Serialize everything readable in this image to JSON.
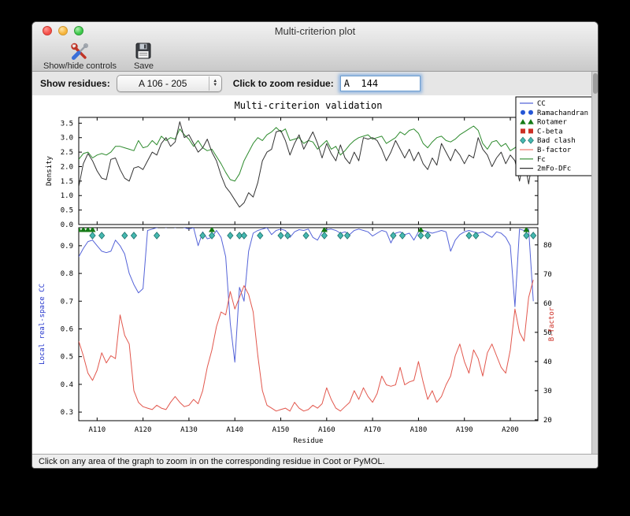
{
  "window": {
    "title": "Multi-criterion plot"
  },
  "toolbar": {
    "buttons": [
      {
        "label": "Show/hide controls",
        "icon": "tools-icon"
      },
      {
        "label": "Save",
        "icon": "floppy-disk-icon"
      }
    ]
  },
  "controls": {
    "show_residues_label": "Show residues:",
    "show_residues_value": "A 106 - 205",
    "zoom_residue_label": "Click to zoom residue:",
    "zoom_residue_value": "A  144"
  },
  "statusbar": {
    "text": "Click on any area of the graph to zoom in on the corresponding residue in Coot or PyMOL."
  },
  "chart_data": {
    "type": "line",
    "title": "Multi-criterion validation",
    "xlabel": "Residue",
    "x_start": 106,
    "x_end": 205,
    "x_tick_values": [
      110,
      120,
      130,
      140,
      150,
      160,
      170,
      180,
      190,
      200
    ],
    "x_tick_labels": [
      "A110",
      "A120",
      "A130",
      "A140",
      "A150",
      "A160",
      "A170",
      "A180",
      "A190",
      "A200"
    ],
    "top_panel": {
      "ylabel": "Density",
      "ylim": [
        0,
        3.7
      ],
      "yticks": [
        0.0,
        0.5,
        1.0,
        1.5,
        2.0,
        2.5,
        3.0,
        3.5
      ],
      "series": [
        {
          "name": "Fc",
          "color": "#2e8b2e",
          "values": [
            2.25,
            2.45,
            2.5,
            2.3,
            2.4,
            2.45,
            2.4,
            2.5,
            2.7,
            2.7,
            2.65,
            2.6,
            2.55,
            2.9,
            2.65,
            2.7,
            2.9,
            2.75,
            3.05,
            2.9,
            3.0,
            2.95,
            3.3,
            3.1,
            2.95,
            2.7,
            2.9,
            2.65,
            2.55,
            2.6,
            2.35,
            2.1,
            1.8,
            1.55,
            1.5,
            1.75,
            2.2,
            2.5,
            2.8,
            3.0,
            2.9,
            3.1,
            3.2,
            3.35,
            3.2,
            3.3,
            2.9,
            2.95,
            3.0,
            2.8,
            2.9,
            2.85,
            2.6,
            2.75,
            2.9,
            2.6,
            2.7,
            2.4,
            2.55,
            2.75,
            2.9,
            3.0,
            3.05,
            3.1,
            2.95,
            3.0,
            3.05,
            2.8,
            2.9,
            3.0,
            3.2,
            3.1,
            3.25,
            3.3,
            3.15,
            2.8,
            2.65,
            2.85,
            3.0,
            3.05,
            2.9,
            2.85,
            2.95,
            3.1,
            3.2,
            3.3,
            3.4,
            3.25,
            2.8,
            2.6,
            2.85,
            2.9,
            2.7,
            2.8,
            2.55,
            2.65,
            2.8,
            2.9,
            2.85,
            2.6
          ]
        },
        {
          "name": "2mFo-DFc",
          "color": "#333333",
          "values": [
            1.3,
            2.1,
            2.45,
            2.2,
            1.85,
            1.6,
            1.55,
            2.25,
            2.3,
            1.9,
            1.6,
            1.5,
            1.95,
            2.0,
            1.9,
            2.2,
            2.5,
            2.4,
            2.8,
            3.0,
            2.7,
            2.85,
            3.55,
            3.0,
            3.1,
            2.8,
            2.5,
            2.65,
            2.95,
            2.5,
            2.2,
            1.7,
            1.3,
            1.1,
            0.85,
            0.6,
            0.75,
            1.1,
            0.95,
            1.45,
            2.2,
            2.5,
            2.6,
            3.2,
            3.25,
            2.9,
            2.4,
            2.8,
            3.1,
            2.6,
            2.9,
            3.2,
            2.8,
            2.3,
            2.8,
            2.45,
            2.2,
            2.75,
            2.3,
            2.1,
            2.5,
            2.2,
            3.0,
            2.95,
            3.0,
            2.9,
            2.6,
            2.2,
            2.5,
            2.9,
            2.6,
            2.3,
            2.6,
            2.2,
            2.5,
            2.1,
            1.9,
            2.3,
            2.05,
            2.8,
            2.5,
            2.2,
            2.6,
            2.4,
            2.1,
            2.4,
            2.3,
            3.0,
            2.6,
            2.4,
            2.0,
            2.3,
            2.5,
            2.1,
            2.4,
            2.2,
            1.5,
            2.3,
            1.4,
            2.4
          ]
        }
      ]
    },
    "bottom_panel": {
      "ylabel_left": "Local real-space CC",
      "ylabel_left_color": "#2233cc",
      "ylim_left": [
        0.269,
        0.965
      ],
      "yticks_left": [
        0.3,
        0.4,
        0.5,
        0.6,
        0.7,
        0.8,
        0.9
      ],
      "ylabel_right": "B-factor",
      "ylabel_right_color": "#cc2a20",
      "ylim_right": [
        19.7,
        85.9
      ],
      "yticks_right": [
        20,
        30,
        40,
        50,
        60,
        70,
        80
      ],
      "series": [
        {
          "name": "CC",
          "axis": "left",
          "color": "#5463d8",
          "values": [
            0.86,
            0.89,
            0.915,
            0.92,
            0.9,
            0.88,
            0.875,
            0.88,
            0.92,
            0.9,
            0.87,
            0.8,
            0.76,
            0.73,
            0.745,
            0.955,
            0.96,
            0.965,
            0.97,
            0.965,
            0.97,
            0.965,
            0.97,
            0.965,
            0.96,
            0.965,
            0.9,
            0.95,
            0.925,
            0.93,
            0.955,
            0.93,
            0.86,
            0.62,
            0.48,
            0.75,
            0.7,
            0.88,
            0.945,
            0.955,
            0.96,
            0.965,
            0.94,
            0.955,
            0.96,
            0.955,
            0.93,
            0.95,
            0.958,
            0.955,
            0.96,
            0.93,
            0.92,
            0.95,
            0.958,
            0.96,
            0.955,
            0.945,
            0.95,
            0.94,
            0.955,
            0.96,
            0.955,
            0.95,
            0.935,
            0.945,
            0.955,
            0.95,
            0.91,
            0.945,
            0.95,
            0.94,
            0.945,
            0.92,
            0.95,
            0.955,
            0.95,
            0.945,
            0.95,
            0.955,
            0.95,
            0.88,
            0.92,
            0.94,
            0.95,
            0.955,
            0.95,
            0.945,
            0.95,
            0.94,
            0.93,
            0.95,
            0.945,
            0.93,
            0.9,
            0.68,
            0.96,
            0.955,
            0.96,
            0.7
          ]
        },
        {
          "name": "B-factor",
          "axis": "right",
          "color": "#e2574d",
          "values": [
            47,
            42,
            36,
            33.5,
            37,
            43,
            39.5,
            42,
            41,
            56,
            49,
            46,
            30,
            26,
            24.5,
            24,
            23.5,
            25,
            24,
            23.5,
            26,
            28,
            26,
            24.5,
            25,
            27,
            25.5,
            30,
            38,
            44,
            52,
            57,
            56,
            64,
            58,
            62,
            66,
            63,
            57,
            42,
            30,
            25,
            24,
            23,
            23.5,
            24,
            23,
            26,
            24,
            23,
            23.5,
            25,
            24,
            25.5,
            31,
            27,
            24,
            23,
            24.5,
            26,
            30,
            27,
            31,
            28,
            26,
            29,
            35,
            32,
            31.5,
            32,
            38,
            32,
            33,
            33.5,
            40,
            33,
            27,
            30,
            26,
            28,
            32,
            35,
            42,
            46,
            40,
            36,
            44,
            41,
            35,
            43,
            46,
            42,
            38,
            36,
            44,
            58,
            50,
            47,
            62,
            68
          ]
        }
      ],
      "rotamer_outlier_residues": [
        106,
        107,
        108,
        109,
        135,
        159.5,
        180.5,
        203.5
      ],
      "bad_clash_residues": [
        109,
        111,
        116,
        118,
        123,
        133,
        135,
        139,
        141,
        142,
        145.5,
        150,
        151.5,
        155.5,
        159.5,
        163,
        164.5,
        174.5,
        176.5,
        180.5,
        182,
        191,
        192.5,
        203.5,
        205
      ],
      "marker_colors": {
        "rotamer": "#157a15",
        "bad_clash": "#45b8b0",
        "ramachandran": "#2456d6",
        "c_beta": "#cc2f25"
      }
    },
    "legend": {
      "position": "upper right",
      "entries": [
        {
          "label": "CC",
          "type": "line",
          "color": "#5463d8"
        },
        {
          "label": "Ramachandran",
          "type": "circle",
          "color": "#2456d6"
        },
        {
          "label": "Rotamer",
          "type": "triangle",
          "color": "#157a15"
        },
        {
          "label": "C-beta",
          "type": "square",
          "color": "#cc2f25"
        },
        {
          "label": "Bad clash",
          "type": "diamond",
          "color": "#45b8b0"
        },
        {
          "label": "B-factor",
          "type": "line",
          "color": "#ef7b72"
        },
        {
          "label": "Fc",
          "type": "line",
          "color": "#2e8b2e"
        },
        {
          "label": "2mFo-DFc",
          "type": "line",
          "color": "#333333"
        }
      ]
    }
  }
}
